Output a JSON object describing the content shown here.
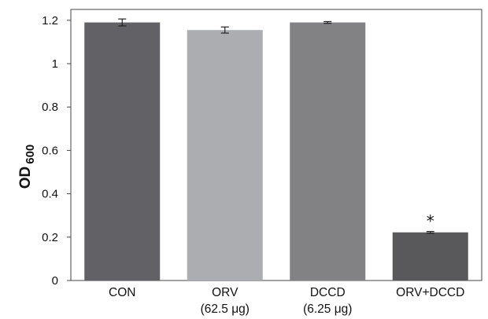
{
  "chart_data": {
    "type": "bar",
    "categories": [
      {
        "line1": "CON",
        "line2": ""
      },
      {
        "line1": "ORV",
        "line2": "(62.5 μg)"
      },
      {
        "line1": "DCCD",
        "line2": "(6.25 μg)"
      },
      {
        "line1": "ORV+DCCD",
        "line2": ""
      }
    ],
    "values": [
      1.19,
      1.155,
      1.19,
      0.222
    ],
    "errors": [
      0.016,
      0.014,
      0.004,
      0.004
    ],
    "bar_colors": [
      "#626266",
      "#acadb0",
      "#828285",
      "#59595b"
    ],
    "annotations": [
      "",
      "",
      "",
      "*"
    ],
    "ylabel": "OD",
    "ylabel_subscript": "600",
    "ylim": [
      0,
      1.25
    ],
    "yticks": [
      0,
      0.2,
      0.4,
      0.6,
      0.8,
      1,
      1.2
    ],
    "ytick_labels": [
      "0",
      "0.2",
      "0.4",
      "0.6",
      "0.8",
      "1",
      "1.2"
    ],
    "grid": false
  }
}
